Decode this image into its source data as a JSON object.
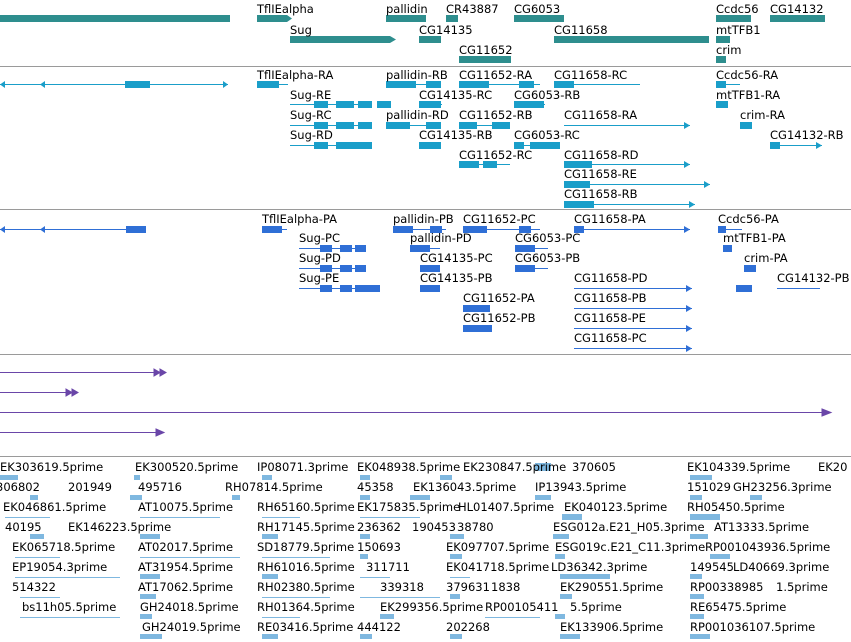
{
  "colors": {
    "gene_teal": "#2e8e8e",
    "transcript_cyan": "#1a9ec9",
    "protein_blue": "#2f6fd6",
    "track3_purple": "#6a46a8",
    "est_lightblue": "#7fb8e0",
    "separator": "#9a9a9a"
  },
  "tracks": {
    "genes": [
      {
        "label": "TflIEalpha"
      },
      {
        "label": "pallidin"
      },
      {
        "label": "CR43887"
      },
      {
        "label": "CG6053"
      },
      {
        "label": "Ccdc56"
      },
      {
        "label": "CG14132"
      },
      {
        "label": "Sug"
      },
      {
        "label": "CG14135"
      },
      {
        "label": "CG11658"
      },
      {
        "label": "mtTFB1"
      },
      {
        "label": "CG11652"
      },
      {
        "label": "crim"
      }
    ],
    "transcripts": [
      {
        "label": "TflIEalpha-RA"
      },
      {
        "label": "pallidin-RB"
      },
      {
        "label": "CG11652-RA"
      },
      {
        "label": "CG11658-RC"
      },
      {
        "label": "Ccdc56-RA"
      },
      {
        "label": "Sug-RE"
      },
      {
        "label": "CG14135-RC"
      },
      {
        "label": "CG6053-RB"
      },
      {
        "label": "mtTFB1-RA"
      },
      {
        "label": "Sug-RC"
      },
      {
        "label": "pallidin-RD"
      },
      {
        "label": "CG11652-RB"
      },
      {
        "label": "CG11658-RA"
      },
      {
        "label": "crim-RA"
      },
      {
        "label": "Sug-RD"
      },
      {
        "label": "CG14135-RB"
      },
      {
        "label": "CG6053-RC"
      },
      {
        "label": "CG14132-RB"
      },
      {
        "label": "CG11652-RC"
      },
      {
        "label": "CG11658-RD"
      },
      {
        "label": "CG11658-RE"
      },
      {
        "label": "CG11658-RB"
      }
    ],
    "proteins": [
      {
        "label": "TflIEalpha-PA"
      },
      {
        "label": "pallidin-PB"
      },
      {
        "label": "CG11652-PC"
      },
      {
        "label": "CG11658-PA"
      },
      {
        "label": "Ccdc56-PA"
      },
      {
        "label": "Sug-PC"
      },
      {
        "label": "pallidin-PD"
      },
      {
        "label": "CG6053-PC"
      },
      {
        "label": "mtTFB1-PA"
      },
      {
        "label": "Sug-PD"
      },
      {
        "label": "CG14135-PC"
      },
      {
        "label": "CG6053-PB"
      },
      {
        "label": "crim-PA"
      },
      {
        "label": "Sug-PE"
      },
      {
        "label": "CG14135-PB"
      },
      {
        "label": "CG11658-PD"
      },
      {
        "label": "CG14132-PB"
      },
      {
        "label": "CG11652-PA"
      },
      {
        "label": "CG11658-PB"
      },
      {
        "label": "CG11652-PB"
      },
      {
        "label": "CG11658-PE"
      },
      {
        "label": "CG11658-PC"
      }
    ],
    "ests": [
      {
        "label": "EK303619.5prime"
      },
      {
        "label": "EK300520.5prime"
      },
      {
        "label": "IP08071.3prime"
      },
      {
        "label": "EK048938.5prime"
      },
      {
        "label": "EK230847.5prime"
      },
      {
        "label": "370605"
      },
      {
        "label": "EK104339.5prime"
      },
      {
        "label": "EK20"
      },
      {
        "label": "306802"
      },
      {
        "label": "201949"
      },
      {
        "label": "495716"
      },
      {
        "label": "RH07814.5prime"
      },
      {
        "label": "45358"
      },
      {
        "label": "EK136043.5prime"
      },
      {
        "label": "IP13943.5prime"
      },
      {
        "label": "151029"
      },
      {
        "label": "GH23256.3prime"
      },
      {
        "label": "EK046861.5prime"
      },
      {
        "label": "AT10075.5prime"
      },
      {
        "label": "RH65160.5prime"
      },
      {
        "label": "EK175835.5prime"
      },
      {
        "label": "HL01407.5prime"
      },
      {
        "label": "EK040123.5prime"
      },
      {
        "label": "RH05450.5prime"
      },
      {
        "label": "40195"
      },
      {
        "label": "EK146223.5prime"
      },
      {
        "label": "RH17145.5prime"
      },
      {
        "label": "236362"
      },
      {
        "label": "190453"
      },
      {
        "label": "38780"
      },
      {
        "label": "ESG012a.E21_H05.3prime"
      },
      {
        "label": "AT13333.5prime"
      },
      {
        "label": "EK065718.5prime"
      },
      {
        "label": "AT02017.5prime"
      },
      {
        "label": "SD18779.5prime"
      },
      {
        "label": "150693"
      },
      {
        "label": "EK097707.5prime"
      },
      {
        "label": "ESG019c.E21_C11.3prime"
      },
      {
        "label": "RP001043936.5prime"
      },
      {
        "label": "EP19054.3prime"
      },
      {
        "label": "AT31954.5prime"
      },
      {
        "label": "RH61016.5prime"
      },
      {
        "label": "311711"
      },
      {
        "label": "EK041718.5prime"
      },
      {
        "label": "LD36342.3prime"
      },
      {
        "label": "149545"
      },
      {
        "label": "LD40669.3prime"
      },
      {
        "label": "514322"
      },
      {
        "label": "AT17062.5prime"
      },
      {
        "label": "RH02380.5prime"
      },
      {
        "label": "339318"
      },
      {
        "label": "379631"
      },
      {
        "label": "1838"
      },
      {
        "label": "EK290551.5prime"
      },
      {
        "label": "RP00338985"
      },
      {
        "label": "1.5prime"
      },
      {
        "label": "bs11h05.5prime"
      },
      {
        "label": "GH24018.5prime"
      },
      {
        "label": "RH01364.5prime"
      },
      {
        "label": "EK299356.5prime"
      },
      {
        "label": "RP00105411"
      },
      {
        "label": "5.5prime"
      },
      {
        "label": "RE65475.5prime"
      },
      {
        "label": "GH24019.5prime"
      },
      {
        "label": "RE03416.5prime"
      },
      {
        "label": "444122"
      },
      {
        "label": "202268"
      },
      {
        "label": "EK133906.5prime"
      },
      {
        "label": "RP001036107.5prime"
      }
    ]
  }
}
